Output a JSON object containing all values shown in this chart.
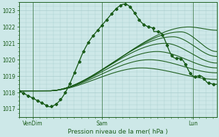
{
  "xlabel": "Pression niveau de la mer( hPa )",
  "bg_color": "#cde8e8",
  "grid_color": "#a8cccc",
  "line_color": "#1a5c1a",
  "ylim": [
    1016.5,
    1023.5
  ],
  "yticks": [
    1017,
    1018,
    1019,
    1020,
    1021,
    1022,
    1023
  ],
  "xtick_labels": [
    "VenDim",
    "Sam",
    "Lun"
  ],
  "xtick_positions": [
    0.07,
    0.42,
    0.88
  ],
  "series_params": [
    [
      1018.1,
      0.15,
      1017.15,
      0.5,
      1023.2,
      1018.5,
      true,
      0.4
    ],
    [
      1018.1,
      0.15,
      1018.1,
      0.62,
      1019.5,
      1018.8,
      false,
      0.0
    ],
    [
      1018.1,
      0.15,
      1018.1,
      0.66,
      1020.0,
      1019.2,
      false,
      0.0
    ],
    [
      1018.1,
      0.15,
      1018.1,
      0.7,
      1020.5,
      1019.5,
      false,
      0.0
    ],
    [
      1018.1,
      0.15,
      1018.1,
      0.74,
      1021.0,
      1019.8,
      false,
      0.0
    ],
    [
      1018.1,
      0.15,
      1018.1,
      0.78,
      1021.4,
      1020.2,
      false,
      0.0
    ],
    [
      1018.1,
      0.15,
      1018.1,
      0.82,
      1021.7,
      1020.5,
      false,
      0.0
    ],
    [
      1018.1,
      0.15,
      1018.1,
      0.86,
      1022.0,
      1021.8,
      false,
      0.0
    ]
  ]
}
